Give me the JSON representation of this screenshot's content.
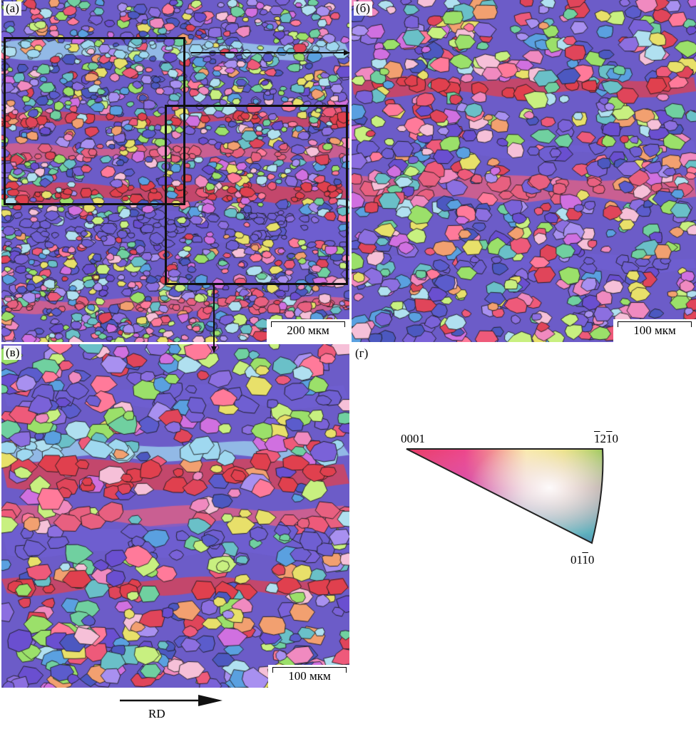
{
  "panels": {
    "a": {
      "label": "(a)",
      "scale": "200 мкм"
    },
    "b": {
      "label": "(б)",
      "scale": "100 мкм"
    },
    "c": {
      "label": "(в)",
      "scale": "100 мкм"
    },
    "d": {
      "label": "(г)"
    }
  },
  "direction_label": "RD",
  "legend": {
    "vertex_basal": "0001",
    "vertex_1210": {
      "p1": "1",
      "p2": "2",
      "p3": "1",
      "p4": "0"
    },
    "vertex_0110": {
      "p1": "0",
      "p2": "1",
      "p3": "1",
      "p4": "0"
    }
  },
  "colors": {
    "basal": "#e8102a",
    "prism_1210": "#6cc628",
    "prism_0110": "#3a3f9e",
    "boundary": "#1a1a1a",
    "frame": "#111111"
  }
}
